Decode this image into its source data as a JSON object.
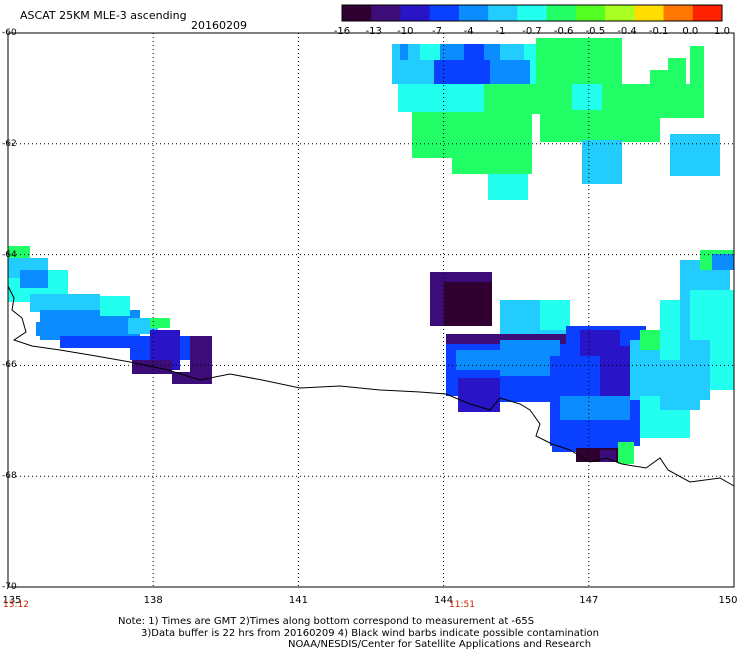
{
  "header": {
    "title": "ASCAT 25KM MLE-3 ascending",
    "date": "20160209"
  },
  "colorbar": {
    "labels": [
      "-16",
      "-13",
      "-10",
      "-7",
      "-4",
      "-1",
      "-0.7",
      "-0.6",
      "-0.5",
      "-0.4",
      "-0.1",
      "0.0",
      "1.0"
    ],
    "colors": [
      "#300030",
      "#3c0c78",
      "#2a14c8",
      "#0a40ff",
      "#0a8cff",
      "#22ccff",
      "#22ffee",
      "#22ff66",
      "#55ff22",
      "#aaff22",
      "#ffdd00",
      "#ff7700",
      "#ff2200"
    ]
  },
  "map": {
    "lat_labels": [
      "-60",
      "-62",
      "-64",
      "-66",
      "-68",
      "-70"
    ],
    "lon_labels": [
      "135",
      "138",
      "141",
      "144",
      "147",
      "150"
    ],
    "lat_range": [
      -70,
      -60
    ],
    "lon_range": [
      135,
      150
    ],
    "grid": true,
    "times": [
      "13:12",
      "11:51"
    ]
  },
  "notes": {
    "line1": "Note: 1) Times are GMT 2)Times along bottom correspond to measurement at -65S",
    "line2": "3)Data buffer is 22 hrs from 20160209 4) Black wind barbs indicate possible contamination",
    "line3": "NOAA/NESDIS/Center for Satellite Applications and Research"
  }
}
